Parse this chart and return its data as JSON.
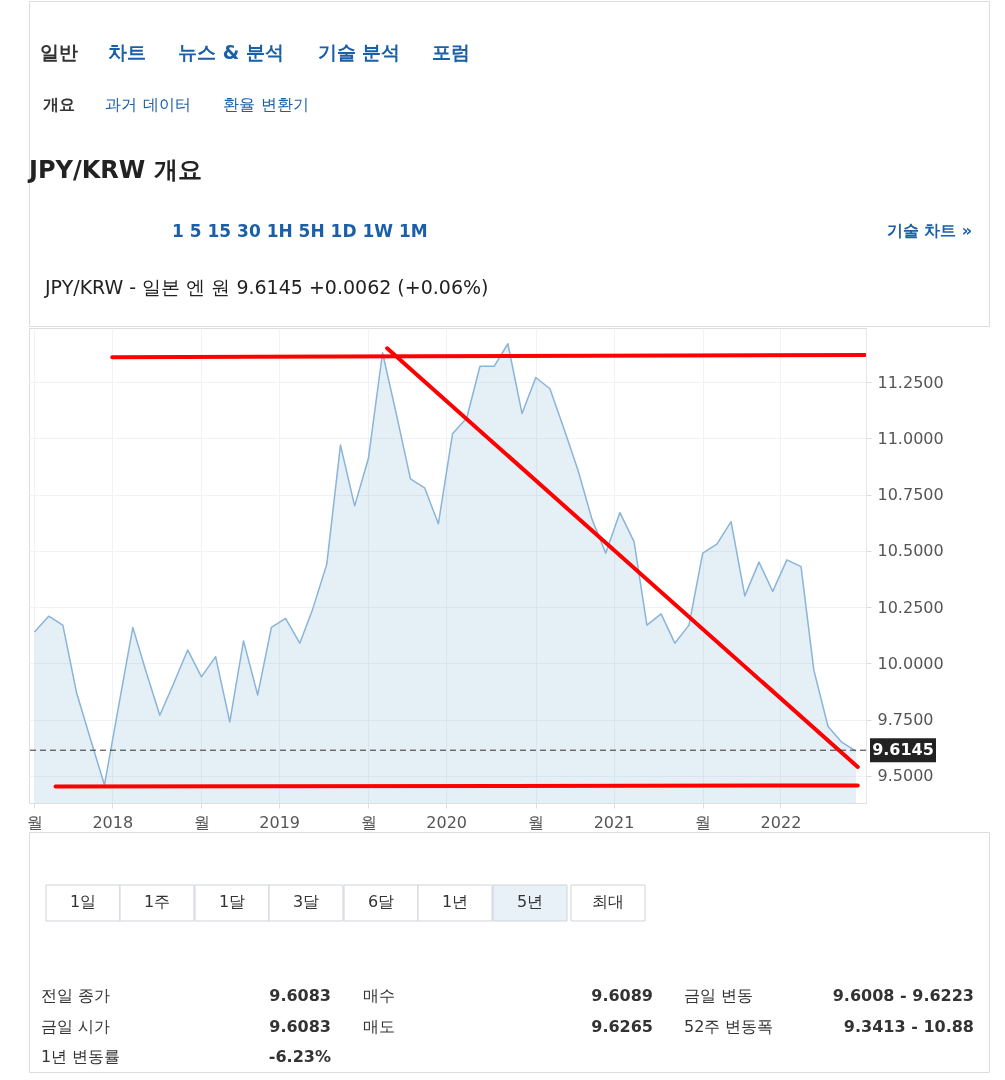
{
  "chart_data": {
    "type": "area",
    "title": "JPY/KRW 개요",
    "subtitle": "JPY/KRW - 일본 엔 원 9.6145 +0.0062 (+0.06%)",
    "x": [
      "2017-07-15",
      "2017-08-15",
      "2017-09-15",
      "2017-10-15",
      "2017-11-15",
      "2017-12-15",
      "2018-01-15",
      "2018-02-15",
      "2018-03-15",
      "2018-04-15",
      "2018-05-15",
      "2018-06-15",
      "2018-07-15",
      "2018-08-15",
      "2018-09-15",
      "2018-10-15",
      "2018-11-15",
      "2018-12-15",
      "2019-01-15",
      "2019-02-15",
      "2019-03-15",
      "2019-04-15",
      "2019-05-15",
      "2019-06-15",
      "2019-07-15",
      "2019-08-15",
      "2019-09-15",
      "2019-10-15",
      "2019-11-15",
      "2019-12-15",
      "2020-01-15",
      "2020-02-15",
      "2020-03-15",
      "2020-04-15",
      "2020-05-15",
      "2020-06-15",
      "2020-07-15",
      "2020-08-15",
      "2020-09-15",
      "2020-10-15",
      "2020-11-15",
      "2020-12-15",
      "2021-01-15",
      "2021-02-15",
      "2021-03-15",
      "2021-04-15",
      "2021-05-15",
      "2021-06-15",
      "2021-07-15",
      "2021-08-15",
      "2021-09-15",
      "2021-10-15",
      "2021-11-15",
      "2021-12-15",
      "2022-01-15",
      "2022-02-15",
      "2022-03-15",
      "2022-04-15",
      "2022-05-15",
      "2022-06-15"
    ],
    "series": [
      {
        "color": "#8ab4d8",
        "values": [
          10.14,
          10.21,
          10.17,
          9.87,
          9.66,
          9.46,
          9.81,
          10.16,
          9.97,
          9.77,
          9.91,
          10.06,
          9.94,
          10.03,
          9.74,
          10.1,
          9.86,
          10.16,
          10.2,
          10.09,
          10.24,
          10.44,
          10.97,
          10.7,
          10.91,
          11.38,
          11.1,
          10.82,
          10.78,
          10.62,
          11.02,
          11.09,
          11.32,
          11.32,
          11.42,
          11.11,
          11.27,
          11.22,
          11.04,
          10.86,
          10.64,
          10.49,
          10.67,
          10.54,
          10.17,
          10.22,
          10.09,
          10.17,
          10.49,
          10.53,
          10.63,
          10.3,
          10.45,
          10.32,
          10.46,
          10.43,
          9.97,
          9.72,
          9.65,
          9.61
        ]
      },
      {
        "type": "line",
        "color": "#ff0000",
        "x": [
          "2018-01-01",
          "2022-07-05"
        ],
        "values": [
          11.36,
          11.37
        ]
      },
      {
        "type": "line",
        "color": "#ff0000",
        "x": [
          "2017-08-30",
          "2022-06-19"
        ],
        "values": [
          9.453,
          9.458
        ]
      },
      {
        "type": "line",
        "color": "#ff0000",
        "x": [
          "2019-08-25",
          "2022-06-19"
        ],
        "values": [
          11.4,
          9.54
        ]
      }
    ],
    "xlim": [
      "2017-07-03",
      "2022-07-07"
    ],
    "xticks": [
      {
        "value": "2017-07-15",
        "label": "월"
      },
      "2018",
      {
        "value": "2018-07-15",
        "label": "월"
      },
      "2019",
      {
        "value": "2019-07-15",
        "label": "월"
      },
      "2020",
      {
        "value": "2020-07-15",
        "label": "월"
      },
      "2021",
      {
        "value": "2021-07-15",
        "label": "월"
      },
      "2022"
    ],
    "ylim": [
      9.38,
      11.49
    ],
    "yticks": [
      {
        "value": 9.5,
        "label": "9.5000"
      },
      {
        "value": 9.75,
        "label": "9.7500"
      },
      {
        "value": 10,
        "label": "10.0000"
      },
      {
        "value": 10.25,
        "label": "10.2500"
      },
      {
        "value": 10.5,
        "label": "10.5000"
      },
      {
        "value": 10.75,
        "label": "10.7500"
      },
      {
        "value": 11,
        "label": "11.0000"
      },
      {
        "value": 11.25,
        "label": "11.2500"
      }
    ],
    "ref_lines": [
      {
        "axis": "y",
        "value": 9.6145,
        "label": "9.6145",
        "color": "#333333",
        "line_style": "dashed"
      }
    ],
    "grid": true,
    "annotations": [
      "일반",
      "차트",
      "뉴스 & 분석",
      "기술 분석",
      "포럼",
      "개요",
      "과거 데이터",
      "환율 변환기",
      "1 5 15 30 1H 5H 1D 1W 1M",
      "기술 차트 »",
      "1일",
      "1주",
      "1달",
      "3달",
      "6달",
      "1년",
      "5년",
      "최대",
      "전일 종가",
      "9.6083",
      "매수",
      "9.6089",
      "금일 변동",
      "9.6008 - 9.6223",
      "금일 시가",
      "9.6083",
      "매도",
      "9.6265",
      "52주 변동폭",
      "9.3413 - 10.88",
      "1년 변동률",
      "-6.23%"
    ]
  }
}
